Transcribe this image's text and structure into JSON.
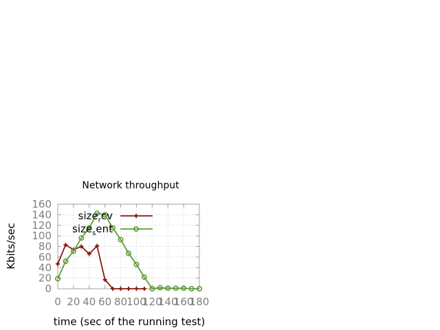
{
  "chart_data": {
    "type": "line",
    "title": "Network throughput",
    "xlabel": "time (sec of the running test)",
    "ylabel": "Kbits/sec",
    "xlim": [
      0,
      180
    ],
    "ylim": [
      0,
      160
    ],
    "xticks": [
      "0",
      "20",
      "40",
      "60",
      "80",
      "100",
      "120",
      "140",
      "160",
      "180"
    ],
    "yticks": [
      "0",
      "20",
      "40",
      "60",
      "80",
      "100",
      "120",
      "140",
      "160"
    ],
    "grid": true,
    "legend_position": "top-right",
    "series": [
      {
        "name_base": "size",
        "name_sub": "r",
        "name_rest": "cv",
        "color": "#8b1a0e",
        "marker": "plus",
        "x": [
          0,
          10,
          20,
          30,
          40,
          50,
          60,
          70,
          80,
          90,
          100,
          110
        ],
        "y": [
          47,
          83,
          74,
          80,
          66,
          81,
          17,
          0,
          0,
          0,
          0,
          0
        ]
      },
      {
        "name_base": "size",
        "name_sub": "s",
        "name_rest": "ent",
        "color": "#5e9c36",
        "marker": "circle",
        "x": [
          0,
          10,
          20,
          30,
          40,
          50,
          60,
          70,
          80,
          90,
          100,
          110,
          120,
          130,
          140,
          150,
          160,
          170,
          180
        ],
        "y": [
          19,
          52,
          71,
          96,
          115,
          143,
          140,
          115,
          93,
          67,
          46,
          22,
          0,
          2,
          1,
          1,
          1,
          0,
          0
        ]
      }
    ]
  }
}
